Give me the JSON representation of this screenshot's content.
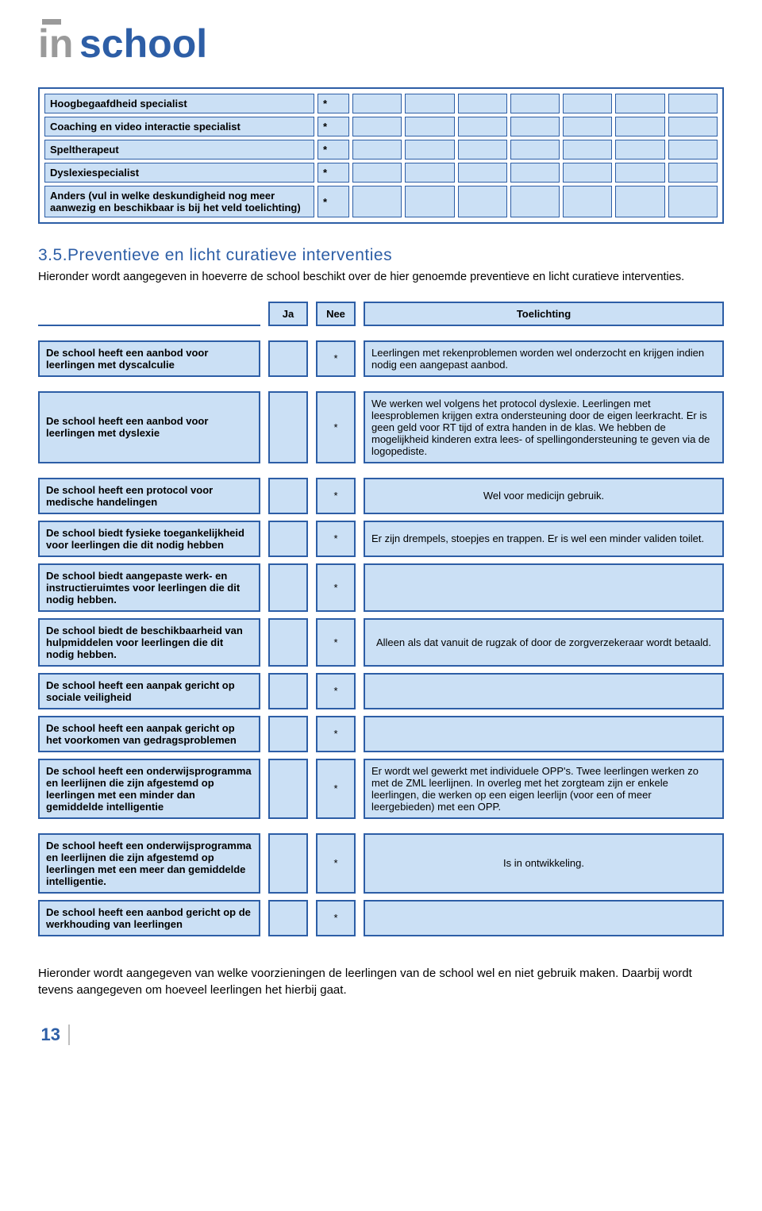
{
  "colors": {
    "brand_blue": "#2d5ea6",
    "cell_fill": "#cbe0f5",
    "logo_gray": "#9a9a9a",
    "page_bg": "#ffffff"
  },
  "logo": {
    "text_in": "in",
    "text_school": "school"
  },
  "top_table": {
    "rows": [
      {
        "label": "Hoogbegaafdheid specialist",
        "mark": "*"
      },
      {
        "label": "Coaching en video interactie specialist",
        "mark": "*"
      },
      {
        "label": "Speltherapeut",
        "mark": "*"
      },
      {
        "label": "Dyslexiespecialist",
        "mark": "*"
      },
      {
        "label": "Anders (vul in welke deskundigheid nog meer aanwezig en beschikbaar is bij het veld toelichting)",
        "mark": "*"
      }
    ],
    "extra_blank_cols": 7
  },
  "section": {
    "heading": "3.5.Preventieve en licht curatieve interventies",
    "intro": "Hieronder wordt aangegeven in hoeverre de school beschikt over de hier genoemde preventieve en licht curatieve interventies."
  },
  "int_header": {
    "ja": "Ja",
    "nee": "Nee",
    "expl": "Toelichting"
  },
  "interventions": [
    {
      "q": "De school heeft een aanbod voor leerlingen met dyscalculie",
      "ja": "",
      "nee": "*",
      "expl": "Leerlingen met rekenproblemen worden wel onderzocht en krijgen indien nodig een aangepast aanbod.",
      "gap_after": true
    },
    {
      "q": "De school heeft een aanbod voor leerlingen met dyslexie",
      "ja": "",
      "nee": "*",
      "expl": "We werken wel volgens het protocol dyslexie. Leerlingen met leesproblemen krijgen extra ondersteuning door de eigen leerkracht. Er is geen geld voor RT tijd of extra handen in de klas. We hebben de mogelijkheid kinderen extra lees- of spellingondersteuning te geven via de logopediste.",
      "gap_after": true
    },
    {
      "q": "De school heeft een protocol voor medische handelingen",
      "ja": "",
      "nee": "*",
      "expl": "Wel voor medicijn gebruik.",
      "expl_align": "center"
    },
    {
      "q": "De school biedt fysieke toegankelijkheid voor leerlingen die dit nodig hebben",
      "ja": "",
      "nee": "*",
      "expl": "Er zijn drempels, stoepjes en trappen. Er is wel een minder validen toilet."
    },
    {
      "q": "De school biedt aangepaste werk- en instructieruimtes voor leerlingen die dit nodig hebben.",
      "ja": "",
      "nee": "*",
      "expl": ""
    },
    {
      "q": "De school biedt de beschikbaarheid van hulpmiddelen voor leerlingen die dit nodig hebben.",
      "ja": "",
      "nee": "*",
      "expl": "Alleen als dat vanuit de rugzak of door de zorgverzekeraar wordt betaald.",
      "expl_align": "center"
    },
    {
      "q": "De school heeft een aanpak gericht op sociale veiligheid",
      "ja": "",
      "nee": "*",
      "expl": ""
    },
    {
      "q": "De school heeft een aanpak gericht op het voorkomen van gedragsproblemen",
      "ja": "",
      "nee": "*",
      "expl": ""
    },
    {
      "q": "De school heeft een onderwijsprogramma en leerlijnen die zijn afgestemd op leerlingen met een minder dan gemiddelde intelligentie",
      "ja": "",
      "nee": "*",
      "expl": "Er wordt wel gewerkt met individuele OPP's. Twee leerlingen werken zo met de ZML leerlijnen. In overleg met het zorgteam zijn er enkele leerlingen, die werken op een eigen leerlijn (voor een of meer leergebieden) met een OPP.",
      "gap_after": true
    },
    {
      "q": "De school heeft een onderwijsprogramma en leerlijnen die zijn afgestemd op leerlingen met een meer dan gemiddelde intelligentie.",
      "ja": "",
      "nee": "*",
      "expl": "Is in ontwikkeling.",
      "expl_align": "center"
    },
    {
      "q": "De school heeft een aanbod gericht op de werkhouding van leerlingen",
      "ja": "",
      "nee": "*",
      "expl": ""
    }
  ],
  "bottom_text": "Hieronder wordt aangegeven van welke voorzieningen de leerlingen van de school wel en niet gebruik maken. Daarbij wordt tevens aangegeven om hoeveel leerlingen het hierbij gaat.",
  "page_number": "13"
}
